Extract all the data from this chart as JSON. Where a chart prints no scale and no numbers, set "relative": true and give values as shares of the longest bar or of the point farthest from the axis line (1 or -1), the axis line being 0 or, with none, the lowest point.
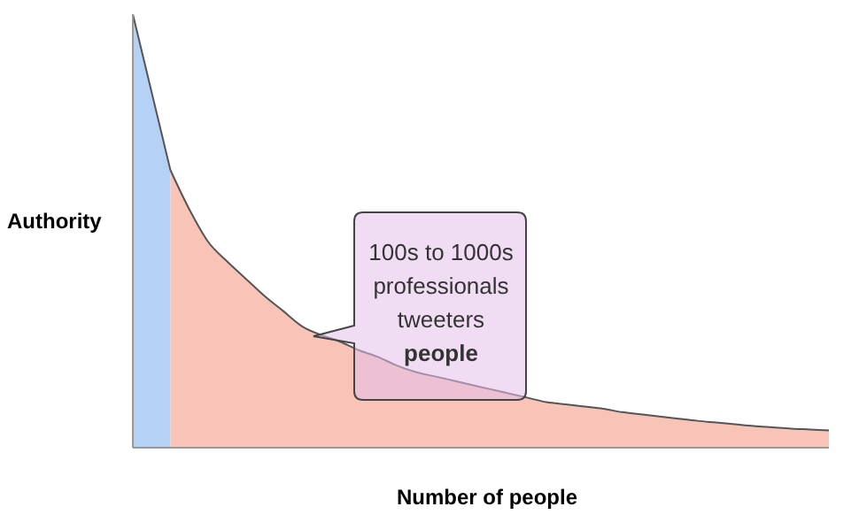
{
  "chart_data": {
    "type": "area",
    "relative": true,
    "xlabel": "Number of people",
    "ylabel": "Authority",
    "categories": [
      null,
      null,
      null,
      null,
      null,
      null,
      null,
      null,
      null,
      null,
      null,
      null,
      null,
      null,
      null,
      null,
      null,
      null,
      null,
      null,
      null,
      null,
      null,
      null,
      null,
      null,
      null,
      null,
      null,
      null,
      null,
      null,
      null,
      null,
      null,
      null,
      null,
      null
    ],
    "series": [
      {
        "color": "#b5d2f6",
        "values": [
          1,
          0.82,
          0.64,
          null,
          null,
          null,
          null,
          null,
          null,
          null,
          null,
          null,
          null,
          null,
          null,
          null,
          null,
          null,
          null,
          null,
          null,
          null,
          null,
          null,
          null,
          null,
          null,
          null,
          null,
          null,
          null,
          null,
          null,
          null,
          null,
          null,
          null,
          null
        ]
      },
      {
        "color": "#f9c4b8",
        "values": [
          null,
          null,
          0.64,
          0.55,
          0.475,
          0.43,
          0.39,
          0.35,
          0.315,
          0.28,
          0.26,
          0.245,
          0.225,
          0.21,
          0.19,
          0.175,
          0.165,
          0.155,
          0.145,
          0.135,
          0.125,
          0.115,
          0.105,
          0.1,
          0.095,
          0.09,
          0.082,
          0.077,
          0.072,
          0.067,
          0.062,
          0.058,
          0.054,
          0.05,
          0.047,
          0.044,
          0.042,
          0.04
        ]
      }
    ],
    "annotations": [
      "100s to 1000s\nprofessionals\ntweeters\npeople"
    ]
  }
}
